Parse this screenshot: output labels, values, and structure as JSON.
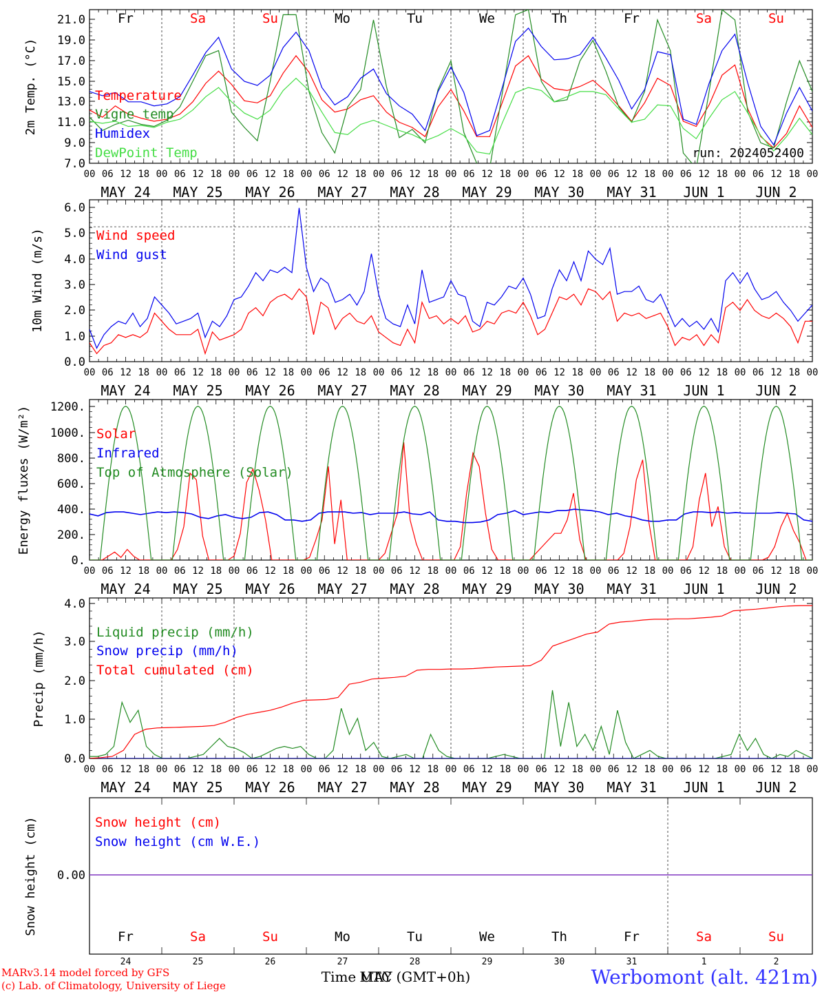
{
  "colors": {
    "red": "#ff0000",
    "dark_green": "#228b22",
    "light_green": "#44dd44",
    "blue": "#0000ee",
    "purple": "#7b2fbe",
    "black": "#000000",
    "title_blue": "#3333ff"
  },
  "days": {
    "weekday": [
      "Fr",
      "Sa",
      "Su",
      "Mo",
      "Tu",
      "We",
      "Th",
      "Fr",
      "Sa",
      "Su"
    ],
    "weekday_red": [
      false,
      true,
      true,
      false,
      false,
      false,
      false,
      false,
      true,
      true
    ],
    "date_labels": [
      "MAY 24",
      "MAY 25",
      "MAY 26",
      "MAY 27",
      "MAY 28",
      "MAY 29",
      "MAY 30",
      "MAY 31",
      "JUN  1",
      "JUN  2"
    ],
    "day_numbers": [
      "24",
      "25",
      "26",
      "27",
      "28",
      "29",
      "30",
      "31",
      "1",
      "2"
    ],
    "hour_ticks": [
      "00",
      "06",
      "12",
      "18"
    ]
  },
  "run_label": "run: 2024052400",
  "footer": {
    "model_line": "MARv3.14 model forced by GFS",
    "lab_line": "(c) Lab. of Climatology, University of Liege",
    "time_label": "Time UTC (GMT+0h)",
    "overlap_label": "MAY",
    "station": "Werbomont (alt. 421m)"
  },
  "chart_data": [
    {
      "type": "line",
      "ylabel": "2m Temp. (°C)",
      "ylim": [
        7,
        22
      ],
      "yticks": [
        "7.0",
        "9.0",
        "11.0",
        "13.0",
        "15.0",
        "17.0",
        "19.0",
        "21.0"
      ],
      "x_unit": "hours since 00 UTC May 24",
      "x_step_hours": 6,
      "xlim": [
        0,
        240
      ],
      "series": [
        {
          "name": "Temperature",
          "color": "#ff0000",
          "values": [
            12.2,
            11.5,
            12.6,
            11.8,
            11.4,
            11.1,
            11.3,
            11.8,
            13.0,
            14.8,
            16.0,
            14.7,
            13.1,
            12.9,
            13.6,
            15.8,
            17.5,
            15.9,
            13.2,
            12.0,
            12.3,
            13.2,
            13.6,
            12.0,
            11.0,
            10.5,
            9.6,
            12.5,
            14.2,
            12.1,
            9.6,
            9.6,
            13.0,
            16.5,
            17.5,
            15.2,
            14.3,
            14.1,
            14.5,
            15.1,
            14.0,
            12.6,
            11.1,
            12.9,
            15.3,
            14.6,
            11.1,
            10.6,
            12.7,
            15.6,
            16.6,
            12.3,
            9.6,
            8.5,
            9.9,
            12.6,
            10.5
          ]
        },
        {
          "name": "Vigne temp",
          "color": "#228b22",
          "values": [
            11.5,
            10.2,
            10.8,
            11.2,
            10.8,
            10.6,
            11.2,
            12.5,
            15.0,
            17.5,
            18.0,
            12.0,
            10.5,
            9.2,
            15.0,
            21.5,
            21.5,
            14.0,
            10.0,
            8.0,
            12.5,
            14.2,
            21.0,
            14.5,
            9.5,
            10.3,
            9.0,
            14.2,
            17.0,
            10.0,
            7.0,
            6.5,
            14.0,
            21.5,
            22.0,
            15.0,
            13.0,
            13.2,
            17.0,
            19.0,
            16.0,
            12.5,
            11.0,
            14.0,
            21.0,
            18.0,
            8.0,
            6.5,
            14.0,
            22.0,
            21.0,
            12.0,
            9.0,
            8.5,
            13.0,
            17.0,
            14.0
          ]
        },
        {
          "name": "Humidex",
          "color": "#0000ee",
          "values": [
            14.0,
            13.6,
            13.9,
            13.0,
            13.0,
            12.6,
            12.8,
            13.5,
            15.6,
            17.8,
            19.3,
            16.2,
            15.0,
            14.6,
            15.6,
            18.3,
            19.8,
            18.0,
            14.4,
            12.7,
            13.5,
            15.3,
            16.2,
            13.8,
            12.6,
            11.8,
            10.2,
            14.0,
            16.4,
            13.9,
            9.7,
            10.2,
            14.5,
            18.9,
            20.2,
            18.4,
            17.1,
            17.2,
            17.6,
            19.3,
            17.3,
            15.1,
            12.3,
            14.2,
            17.9,
            17.6,
            11.3,
            10.8,
            14.8,
            18.0,
            19.6,
            14.8,
            10.6,
            8.8,
            11.9,
            14.4,
            12.1
          ]
        },
        {
          "name": "DewPoint Temp",
          "color": "#44dd44",
          "values": [
            11.1,
            10.9,
            11.1,
            10.6,
            10.7,
            10.5,
            11.0,
            11.3,
            12.2,
            13.5,
            14.4,
            13.0,
            11.9,
            11.3,
            12.2,
            14.1,
            15.3,
            14.1,
            12.0,
            10.0,
            9.8,
            10.8,
            11.2,
            10.7,
            10.2,
            9.8,
            9.2,
            9.7,
            10.4,
            9.7,
            8.1,
            7.9,
            11.0,
            13.9,
            14.4,
            14.1,
            13.0,
            13.5,
            14.0,
            14.0,
            13.7,
            12.3,
            11.0,
            11.3,
            12.7,
            12.6,
            10.4,
            9.4,
            11.4,
            13.2,
            14.0,
            11.9,
            9.7,
            8.2,
            9.6,
            11.4,
            9.8
          ]
        }
      ]
    },
    {
      "type": "line",
      "ylabel": "10m Wind (m/s)",
      "ylim": [
        0,
        6
      ],
      "yticks": [
        "0.0",
        "1.0",
        "2.0",
        "3.0",
        "4.0",
        "5.0",
        "6.0"
      ],
      "dashed_ref": 5,
      "x_step_hours": 3,
      "xlim": [
        0,
        240
      ],
      "series": [
        {
          "name": "Wind speed",
          "color": "#ff0000",
          "values": [
            0.7,
            0.3,
            0.6,
            0.7,
            1.0,
            0.9,
            1.0,
            0.9,
            1.1,
            1.8,
            1.5,
            1.2,
            1.0,
            1.0,
            1.0,
            1.2,
            0.3,
            1.1,
            0.8,
            0.9,
            1.0,
            1.2,
            1.8,
            2.0,
            1.7,
            2.2,
            2.4,
            2.5,
            2.3,
            2.7,
            2.4,
            1.0,
            2.2,
            2.0,
            1.2,
            1.6,
            1.8,
            1.5,
            1.4,
            1.7,
            1.1,
            0.9,
            0.7,
            0.6,
            1.2,
            0.7,
            2.2,
            1.6,
            1.7,
            1.4,
            1.6,
            1.4,
            1.7,
            1.1,
            1.2,
            1.5,
            1.4,
            1.8,
            1.9,
            1.8,
            2.2,
            1.7,
            1.0,
            1.2,
            1.8,
            2.4,
            2.3,
            2.5,
            2.1,
            2.7,
            2.6,
            2.3,
            2.6,
            1.5,
            1.8,
            1.7,
            1.8,
            1.6,
            1.7,
            1.8,
            1.3,
            0.6,
            0.9,
            0.8,
            1.0,
            0.6,
            1.0,
            0.7,
            2.0,
            2.2,
            1.9,
            2.3,
            1.9,
            1.7,
            1.6,
            1.8,
            1.6,
            1.3,
            0.7,
            1.5,
            1.5
          ]
        },
        {
          "name": "Wind gust",
          "color": "#0000ee",
          "values": [
            1.2,
            0.5,
            1.0,
            1.3,
            1.5,
            1.4,
            1.8,
            1.3,
            1.6,
            2.4,
            2.1,
            1.8,
            1.4,
            1.5,
            1.6,
            1.8,
            0.9,
            1.5,
            1.3,
            1.7,
            2.3,
            2.4,
            2.8,
            3.3,
            3.0,
            3.4,
            3.3,
            3.5,
            3.3,
            5.7,
            3.5,
            2.6,
            3.1,
            2.9,
            2.2,
            2.3,
            2.5,
            2.1,
            2.6,
            4.0,
            2.5,
            1.6,
            1.4,
            1.3,
            2.1,
            1.4,
            3.4,
            2.2,
            2.3,
            2.4,
            3.0,
            2.5,
            2.4,
            1.5,
            1.3,
            2.2,
            2.1,
            2.4,
            2.8,
            2.7,
            3.1,
            2.5,
            1.6,
            1.7,
            2.7,
            3.4,
            3.0,
            3.7,
            3.0,
            4.1,
            3.8,
            3.6,
            4.2,
            2.5,
            2.6,
            2.6,
            2.8,
            2.3,
            2.2,
            2.5,
            1.9,
            1.3,
            1.6,
            1.3,
            1.5,
            1.2,
            1.6,
            1.1,
            3.0,
            3.3,
            2.9,
            3.3,
            2.7,
            2.3,
            2.4,
            2.6,
            2.2,
            1.9,
            1.5,
            1.8,
            2.1
          ]
        }
      ]
    },
    {
      "type": "line",
      "ylabel": "Energy fluxes (W/m²)",
      "ylim": [
        0,
        1200
      ],
      "yticks": [
        "0.",
        "200.",
        "400.",
        "600.",
        "800.",
        "1000.",
        "1200."
      ],
      "x_step_hours": 3,
      "xlim": [
        0,
        240
      ],
      "series": [
        {
          "name": "Solar",
          "color": "#ff0000",
          "values": [
            0,
            0,
            0,
            30,
            60,
            20,
            80,
            30,
            0,
            0,
            0,
            0,
            0,
            0,
            80,
            250,
            650,
            600,
            180,
            0,
            0,
            0,
            0,
            30,
            200,
            580,
            680,
            520,
            300,
            0,
            0,
            0,
            0,
            0,
            0,
            20,
            150,
            300,
            700,
            120,
            450,
            0,
            0,
            0,
            0,
            0,
            0,
            50,
            200,
            350,
            880,
            300,
            120,
            0,
            0,
            0,
            0,
            0,
            0,
            100,
            500,
            800,
            700,
            350,
            80,
            0,
            0,
            0,
            0,
            0,
            0,
            50,
            100,
            150,
            200,
            200,
            300,
            500,
            150,
            0,
            0,
            0,
            0,
            0,
            0,
            50,
            250,
            600,
            750,
            280,
            0,
            0,
            0,
            0,
            0,
            0,
            100,
            450,
            650,
            250,
            400,
            100,
            0,
            0,
            0,
            0,
            0,
            0,
            20,
            100,
            250,
            350,
            220,
            130,
            0,
            0
          ]
        },
        {
          "name": "Infrared",
          "color": "#0000ee",
          "values": [
            345,
            330,
            355,
            360,
            360,
            350,
            340,
            350,
            360,
            355,
            360,
            355,
            345,
            320,
            310,
            330,
            340,
            320,
            310,
            320,
            355,
            360,
            340,
            300,
            300,
            290,
            300,
            350,
            360,
            360,
            360,
            350,
            355,
            340,
            350,
            350,
            350,
            360,
            345,
            340,
            360,
            300,
            290,
            290,
            280,
            280,
            285,
            300,
            340,
            350,
            370,
            340,
            350,
            360,
            355,
            370,
            370,
            380,
            375,
            370,
            360,
            340,
            350,
            330,
            320,
            300,
            290,
            290,
            300,
            300,
            345,
            360,
            360,
            355,
            360,
            350,
            355,
            350,
            350,
            350,
            350,
            355,
            350,
            345,
            300,
            290
          ]
        },
        {
          "name": "Top of Atmosphere (Solar)",
          "color": "#228b22",
          "values": [
            0,
            0,
            280,
            720,
            1050,
            1150,
            1050,
            720,
            280,
            0,
            0,
            0
          ]
        }
      ]
    },
    {
      "type": "line",
      "ylabel": "Precip (mm/h)",
      "ylim": [
        0,
        4
      ],
      "yticks": [
        "0.0",
        "1.0",
        "2.0",
        "3.0",
        "4.0"
      ],
      "x_step_hours": 3,
      "xlim": [
        0,
        240
      ],
      "series": [
        {
          "name": "Liquid precip (mm/h)",
          "color": "#228b22",
          "values": [
            0.05,
            0.05,
            0.1,
            0.3,
            1.4,
            0.9,
            1.2,
            0.3,
            0.1,
            0.0,
            0.0,
            0.0,
            0.0,
            0.05,
            0.1,
            0.3,
            0.5,
            0.3,
            0.25,
            0.15,
            0.0,
            0.05,
            0.15,
            0.25,
            0.3,
            0.25,
            0.3,
            0.1,
            0.0,
            0.0,
            0.2,
            1.25,
            0.6,
            1.0,
            0.2,
            0.4,
            0.05,
            0.0,
            0.05,
            0.1,
            0.0,
            0.0,
            0.6,
            0.2,
            0.05,
            0.0,
            0.0,
            0.0,
            0.0,
            0.0,
            0.05,
            0.1,
            0.05,
            0.0,
            0.0,
            0.0,
            0.0,
            1.7,
            0.3,
            1.4,
            0.3,
            0.6,
            0.2,
            0.8,
            0.1,
            1.2,
            0.4,
            0.0,
            0.1,
            0.2,
            0.05,
            0.0,
            0.0,
            0.0,
            0.0,
            0.0,
            0.0,
            0.0,
            0.05,
            0.1,
            0.6,
            0.2,
            0.5,
            0.1,
            0.0,
            0.1,
            0.05,
            0.2,
            0.1,
            0.0
          ]
        },
        {
          "name": "Snow precip (mm/h)",
          "color": "#0000ee",
          "values": [
            0,
            0
          ]
        },
        {
          "name": "Total cumulated (cm)",
          "color": "#ff0000",
          "values": [
            0.0,
            0.02,
            0.05,
            0.2,
            0.6,
            0.73,
            0.76,
            0.77,
            0.78,
            0.79,
            0.8,
            0.82,
            0.9,
            1.02,
            1.1,
            1.15,
            1.2,
            1.28,
            1.38,
            1.45,
            1.46,
            1.47,
            1.52,
            1.85,
            1.9,
            1.98,
            2.0,
            2.02,
            2.05,
            2.2,
            2.22,
            2.22,
            2.23,
            2.23,
            2.24,
            2.26,
            2.28,
            2.29,
            2.3,
            2.31,
            2.45,
            2.8,
            2.9,
            3.0,
            3.1,
            3.15,
            3.35,
            3.4,
            3.42,
            3.45,
            3.47,
            3.47,
            3.48,
            3.48,
            3.5,
            3.52,
            3.55,
            3.68,
            3.7,
            3.72,
            3.75,
            3.78,
            3.8,
            3.81,
            3.81
          ]
        }
      ]
    },
    {
      "type": "line",
      "ylabel": "Snow height (cm)",
      "yticks": [
        "0.00"
      ],
      "xlim": [
        0,
        240
      ],
      "series": [
        {
          "name": "Snow height (cm)",
          "color": "#ff0000",
          "values": [
            0,
            0
          ]
        },
        {
          "name": "Snow height (cm W.E.)",
          "color": "#0000ee",
          "values": [
            0,
            0
          ]
        }
      ]
    }
  ]
}
